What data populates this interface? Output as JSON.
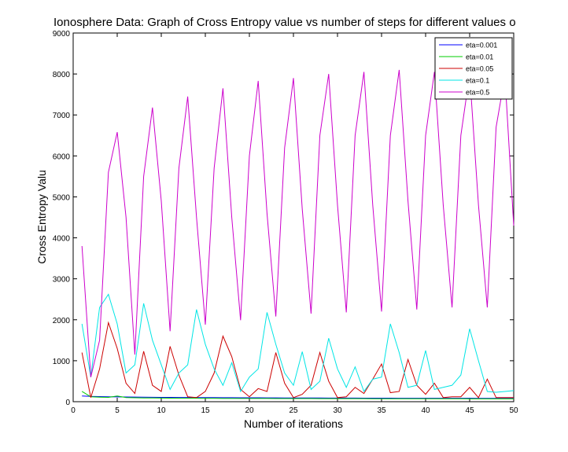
{
  "chart_data": {
    "type": "line",
    "title": "Ionosphere Data: Graph of Cross Entropy value vs number of steps for different values o",
    "xlabel": "Number of iterations",
    "ylabel": "Cross Entropy Valu",
    "xlim": [
      0,
      50
    ],
    "ylim": [
      0,
      9000
    ],
    "xticks": [
      0,
      5,
      10,
      15,
      20,
      25,
      30,
      35,
      40,
      45,
      50
    ],
    "yticks": [
      0,
      1000,
      2000,
      3000,
      4000,
      5000,
      6000,
      7000,
      8000,
      9000
    ],
    "grid": false,
    "legend_position": "top-right",
    "x": [
      1,
      2,
      3,
      4,
      5,
      6,
      7,
      8,
      9,
      10,
      11,
      12,
      13,
      14,
      15,
      16,
      17,
      18,
      19,
      20,
      21,
      22,
      23,
      24,
      25,
      26,
      27,
      28,
      29,
      30,
      31,
      32,
      33,
      34,
      35,
      36,
      37,
      38,
      39,
      40,
      41,
      42,
      43,
      44,
      45,
      46,
      47,
      48,
      49,
      50
    ],
    "series": [
      {
        "name": "eta=0.001",
        "color": "#0000ff",
        "values": [
          140,
          130,
          125,
          120,
          118,
          115,
          112,
          110,
          108,
          106,
          105,
          104,
          103,
          102,
          101,
          100,
          99,
          98,
          97,
          96,
          95,
          94,
          93,
          92,
          92,
          91,
          90,
          90,
          89,
          89,
          88,
          88,
          87,
          87,
          86,
          86,
          85,
          85,
          85,
          84,
          84,
          84,
          83,
          83,
          83,
          82,
          82,
          82,
          81,
          81
        ]
      },
      {
        "name": "eta=0.01",
        "color": "#00cc00",
        "values": [
          250,
          120,
          110,
          105,
          140,
          100,
          95,
          92,
          90,
          88,
          86,
          85,
          84,
          83,
          82,
          81,
          80,
          80,
          79,
          79,
          78,
          78,
          77,
          77,
          76,
          76,
          76,
          75,
          75,
          75,
          74,
          74,
          74,
          73,
          73,
          73,
          72,
          72,
          72,
          72,
          71,
          71,
          71,
          71,
          70,
          70,
          70,
          70,
          70,
          70
        ]
      },
      {
        "name": "eta=0.05",
        "color": "#cc0000",
        "values": [
          1200,
          100,
          800,
          1930,
          1300,
          450,
          200,
          1230,
          400,
          250,
          1350,
          650,
          120,
          100,
          250,
          700,
          1600,
          1100,
          300,
          120,
          320,
          250,
          1200,
          450,
          100,
          180,
          400,
          1200,
          500,
          100,
          120,
          350,
          200,
          550,
          920,
          220,
          250,
          1030,
          400,
          180,
          450,
          100,
          120,
          120,
          350,
          100,
          550,
          100,
          100,
          100
        ]
      },
      {
        "name": "eta=0.1",
        "color": "#00e5e5",
        "values": [
          1900,
          600,
          2300,
          2620,
          1900,
          700,
          900,
          2400,
          1500,
          900,
          300,
          700,
          900,
          2250,
          1400,
          800,
          400,
          950,
          250,
          600,
          800,
          2180,
          1400,
          700,
          400,
          1220,
          300,
          500,
          1550,
          800,
          350,
          850,
          250,
          550,
          600,
          1900,
          1200,
          350,
          400,
          1250,
          300,
          350,
          400,
          650,
          1780,
          1000,
          250,
          230,
          250,
          270
        ]
      },
      {
        "name": "eta=0.5",
        "color": "#cc00cc",
        "values": [
          3800,
          600,
          1500,
          5600,
          6580,
          4500,
          1150,
          5500,
          7180,
          4900,
          1720,
          5700,
          7450,
          4500,
          1880,
          5700,
          7650,
          4500,
          1990,
          6000,
          7830,
          4600,
          2080,
          6200,
          7900,
          4700,
          2150,
          6500,
          8000,
          4800,
          2180,
          6500,
          8050,
          4800,
          2200,
          6500,
          8100,
          4900,
          2250,
          6500,
          8050,
          4800,
          2300,
          6500,
          8000,
          4800,
          2300,
          6700,
          7950,
          4300
        ]
      }
    ]
  }
}
